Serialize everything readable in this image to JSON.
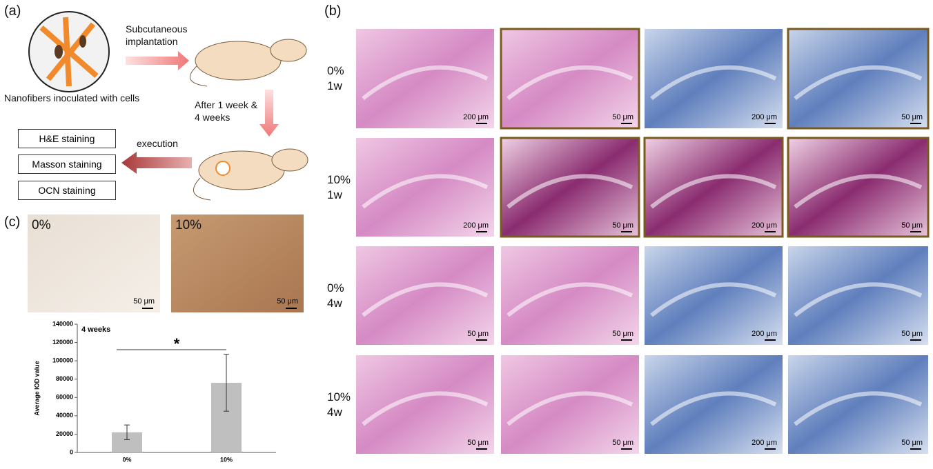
{
  "panel_a": {
    "label": "(a)",
    "scaffold_caption": "Nanofibers inoculated with cells",
    "step1": "Subcutaneous implantation",
    "step2": "After 1 week & 4 weeks",
    "step3": "execution",
    "stains": [
      "H&E staining",
      "Masson staining",
      "OCN staining"
    ]
  },
  "panel_b": {
    "label": "(b)",
    "rows": [
      {
        "concentration": "0%",
        "time": "1w",
        "scale_bars": [
          "200 μm",
          "50 μm",
          "200 μm",
          "50 μm"
        ]
      },
      {
        "concentration": "10%",
        "time": "1w",
        "scale_bars": [
          "200 μm",
          "50 μm",
          "200 μm",
          "50 μm"
        ]
      },
      {
        "concentration": "0%",
        "time": "4w",
        "scale_bars": [
          "50 μm",
          "50 μm",
          "200 μm",
          "50 μm"
        ]
      },
      {
        "concentration": "10%",
        "time": "4w",
        "scale_bars": [
          "50 μm",
          "50 μm",
          "200 μm",
          "50 μm"
        ]
      }
    ]
  },
  "panel_c": {
    "label": "(c)",
    "images": [
      {
        "label": "0%",
        "scale_bar": "50 μm"
      },
      {
        "label": "10%",
        "scale_bar": "50 μm"
      }
    ],
    "significance": "*"
  },
  "chart_data": {
    "type": "bar",
    "title": "4 weeks",
    "y_label": "Average IOD value",
    "categories": [
      "0%",
      "10%"
    ],
    "values": [
      22000,
      76000
    ],
    "errors": [
      8000,
      31000
    ],
    "color": "#bfbfbf",
    "ylim": [
      0,
      140000
    ],
    "yticks": [
      0,
      20000,
      40000,
      60000,
      80000,
      100000,
      120000,
      140000
    ]
  }
}
